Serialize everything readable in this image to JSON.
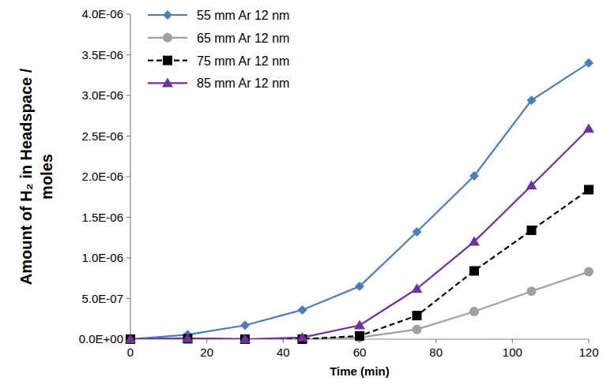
{
  "chart_data": {
    "type": "line",
    "xlabel": "Time (min)",
    "ylabel": "Amount of H₂ in Headspace / moles",
    "x": [
      0,
      15,
      30,
      45,
      60,
      75,
      90,
      105,
      120
    ],
    "xlim": [
      0,
      120
    ],
    "xticks": [
      0,
      20,
      40,
      60,
      80,
      100,
      120
    ],
    "ylim": [
      0,
      4e-06
    ],
    "yticks": [
      {
        "value": 0,
        "label": "0.0E+00"
      },
      {
        "value": 5e-07,
        "label": "5.0E-07"
      },
      {
        "value": 1e-06,
        "label": "1.0E-06"
      },
      {
        "value": 1.5e-06,
        "label": "1.5E-06"
      },
      {
        "value": 2e-06,
        "label": "2.0E-06"
      },
      {
        "value": 2.5e-06,
        "label": "2.5E-06"
      },
      {
        "value": 3e-06,
        "label": "3.0E-06"
      },
      {
        "value": 3.5e-06,
        "label": "3.5E-06"
      },
      {
        "value": 4e-06,
        "label": "4.0E-06"
      }
    ],
    "grid": false,
    "legend": "upper left",
    "series": [
      {
        "name": "55 mm Ar 12 nm",
        "color": "#4a7ebb",
        "marker": "diamond",
        "line_style": "solid",
        "values": [
          0,
          5.5e-08,
          1.7e-07,
          3.6e-07,
          6.5e-07,
          1.32e-06,
          2.01e-06,
          2.94e-06,
          3.4e-06
        ]
      },
      {
        "name": "65 mm Ar 12 nm",
        "color": "#a0a0a0",
        "marker": "circle",
        "line_style": "solid",
        "values": [
          0,
          1e-08,
          0,
          0,
          2e-08,
          1.2e-07,
          3.4e-07,
          5.9e-07,
          8.3e-07
        ]
      },
      {
        "name": "75 mm Ar 12 nm",
        "color": "#000000",
        "marker": "square",
        "line_style": "dashed",
        "values": [
          0,
          5e-09,
          0,
          0,
          4e-08,
          2.9e-07,
          8.4e-07,
          1.34e-06,
          1.84e-06
        ]
      },
      {
        "name": "85 mm Ar 12 nm",
        "color": "#7030a0",
        "marker": "triangle",
        "line_style": "solid",
        "values": [
          0,
          1e-08,
          0,
          2e-08,
          1.7e-07,
          6.2e-07,
          1.2e-06,
          1.89e-06,
          2.59e-06
        ]
      }
    ]
  }
}
